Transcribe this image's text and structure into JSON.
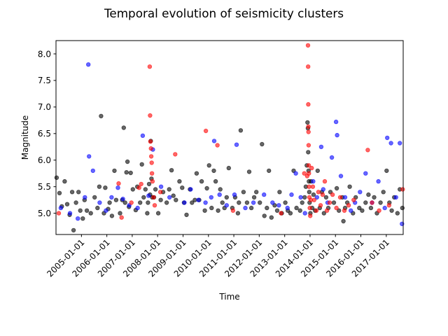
{
  "chart_data": {
    "type": "scatter",
    "title": "Temporal evolution of seismicity clusters",
    "xlabel": "Time",
    "ylabel": "Magnitude",
    "xlim": [
      "2004-01-01",
      "2017-09-01"
    ],
    "ylim": [
      4.6,
      8.25
    ],
    "grid": false,
    "x_ticks": [
      "2005-01-01",
      "2006-01-01",
      "2007-01-01",
      "2008-01-01",
      "2009-01-01",
      "2010-01-01",
      "2011-01-01",
      "2012-01-01",
      "2013-01-01",
      "2014-01-01",
      "2015-01-01",
      "2016-01-01",
      "2017-01-01"
    ],
    "y_ticks": [
      "5.0",
      "5.5",
      "6.0",
      "6.5",
      "7.0",
      "7.5",
      "8.0"
    ],
    "marker_alpha": 0.6,
    "series": [
      {
        "name": "black",
        "color": "#000000",
        "points": [
          [
            "2004-01-10",
            5.67
          ],
          [
            "2004-02-20",
            5.38
          ],
          [
            "2004-03-25",
            5.13
          ],
          [
            "2004-05-05",
            5.6
          ],
          [
            "2004-06-10",
            5.17
          ],
          [
            "2004-07-15",
            4.97
          ],
          [
            "2004-08-20",
            5.4
          ],
          [
            "2004-09-10",
            4.68
          ],
          [
            "2004-10-15",
            5.2
          ],
          [
            "2004-11-20",
            5.4
          ],
          [
            "2004-12-15",
            5.05
          ],
          [
            "2005-01-20",
            4.9
          ],
          [
            "2005-02-15",
            5.25
          ],
          [
            "2005-03-20",
            5.05
          ],
          [
            "2005-05-15",
            5.0
          ],
          [
            "2005-07-10",
            5.3
          ],
          [
            "2005-08-20",
            5.1
          ],
          [
            "2005-09-15",
            5.5
          ],
          [
            "2005-10-10",
            6.83
          ],
          [
            "2005-11-20",
            5.0
          ],
          [
            "2005-12-10",
            5.48
          ],
          [
            "2006-01-20",
            5.08
          ],
          [
            "2006-02-10",
            5.2
          ],
          [
            "2006-03-15",
            4.95
          ],
          [
            "2006-04-20",
            5.8
          ],
          [
            "2006-05-15",
            5.25
          ],
          [
            "2006-07-10",
            5.0
          ],
          [
            "2006-08-10",
            5.25
          ],
          [
            "2006-09-01",
            6.61
          ],
          [
            "2006-09-20",
            5.2
          ],
          [
            "2006-10-10",
            5.77
          ],
          [
            "2006-10-25",
            5.97
          ],
          [
            "2006-11-15",
            5.12
          ],
          [
            "2006-12-10",
            5.76
          ],
          [
            "2007-01-10",
            5.45
          ],
          [
            "2007-02-20",
            5.06
          ],
          [
            "2007-03-15",
            5.5
          ],
          [
            "2007-04-25",
            5.2
          ],
          [
            "2007-05-20",
            5.92
          ],
          [
            "2007-06-15",
            5.3
          ],
          [
            "2007-07-10",
            5.45
          ],
          [
            "2007-08-05",
            5.0
          ],
          [
            "2007-08-15",
            5.2
          ],
          [
            "2007-09-01",
            5.55
          ],
          [
            "2007-09-15",
            5.35
          ],
          [
            "2007-09-25",
            6.36
          ],
          [
            "2007-10-05",
            5.65
          ],
          [
            "2007-10-15",
            5.3
          ],
          [
            "2007-11-10",
            5.3
          ],
          [
            "2007-12-01",
            5.45
          ],
          [
            "2008-01-10",
            5.0
          ],
          [
            "2008-02-15",
            5.25
          ],
          [
            "2008-03-20",
            5.4
          ],
          [
            "2008-05-10",
            5.2
          ],
          [
            "2008-06-15",
            5.45
          ],
          [
            "2008-07-20",
            5.81
          ],
          [
            "2008-08-15",
            5.33
          ],
          [
            "2008-09-20",
            5.25
          ],
          [
            "2008-11-10",
            5.6
          ],
          [
            "2008-12-20",
            5.48
          ],
          [
            "2009-01-15",
            5.2
          ],
          [
            "2009-02-20",
            4.97
          ],
          [
            "2009-04-10",
            5.45
          ],
          [
            "2009-05-10",
            5.2
          ],
          [
            "2009-06-20",
            5.25
          ],
          [
            "2009-07-15",
            5.75
          ],
          [
            "2009-08-20",
            5.25
          ],
          [
            "2009-09-25",
            5.6
          ],
          [
            "2009-11-10",
            5.05
          ],
          [
            "2009-12-10",
            5.47
          ],
          [
            "2010-01-10",
            5.9
          ],
          [
            "2010-02-15",
            5.1
          ],
          [
            "2010-03-20",
            5.8
          ],
          [
            "2010-04-15",
            5.6
          ],
          [
            "2010-05-20",
            5.05
          ],
          [
            "2010-06-20",
            5.45
          ],
          [
            "2010-07-20",
            5.2
          ],
          [
            "2010-08-20",
            5.1
          ],
          [
            "2010-09-20",
            5.3
          ],
          [
            "2010-10-20",
            5.85
          ],
          [
            "2010-12-10",
            5.1
          ],
          [
            "2011-01-20",
            5.3
          ],
          [
            "2011-03-01",
            5.0
          ],
          [
            "2011-03-15",
            5.2
          ],
          [
            "2011-04-10",
            6.56
          ],
          [
            "2011-05-20",
            5.4
          ],
          [
            "2011-07-10",
            5.2
          ],
          [
            "2011-08-10",
            5.78
          ],
          [
            "2011-09-10",
            5.1
          ],
          [
            "2011-10-20",
            5.3
          ],
          [
            "2011-11-20",
            5.4
          ],
          [
            "2012-01-10",
            5.2
          ],
          [
            "2012-02-10",
            6.3
          ],
          [
            "2012-03-15",
            4.95
          ],
          [
            "2012-04-20",
            5.1
          ],
          [
            "2012-05-20",
            5.8
          ],
          [
            "2012-06-25",
            4.92
          ],
          [
            "2012-08-10",
            5.15
          ],
          [
            "2012-09-15",
            5.05
          ],
          [
            "2012-10-20",
            5.4
          ],
          [
            "2012-11-20",
            5.0
          ],
          [
            "2013-01-10",
            5.2
          ],
          [
            "2013-02-15",
            5.05
          ],
          [
            "2013-03-25",
            5.0
          ],
          [
            "2013-05-10",
            5.8
          ],
          [
            "2013-06-20",
            5.1
          ],
          [
            "2013-08-10",
            5.05
          ],
          [
            "2013-09-10",
            5.2
          ],
          [
            "2013-10-15",
            5.3
          ],
          [
            "2013-11-01",
            5.5
          ],
          [
            "2013-11-15",
            5.9
          ],
          [
            "2013-11-25",
            6.71
          ],
          [
            "2013-12-01",
            6.6
          ],
          [
            "2013-12-05",
            6.15
          ],
          [
            "2013-12-10",
            5.8
          ],
          [
            "2013-12-15",
            5.6
          ],
          [
            "2013-12-20",
            5.4
          ],
          [
            "2013-12-25",
            5.2
          ],
          [
            "2014-01-05",
            5.0
          ],
          [
            "2014-01-15",
            5.6
          ],
          [
            "2014-02-01",
            5.1
          ],
          [
            "2014-02-20",
            5.35
          ],
          [
            "2014-03-15",
            5.05
          ],
          [
            "2014-04-20",
            5.8
          ],
          [
            "2014-05-20",
            5.1
          ],
          [
            "2014-06-20",
            5.4
          ],
          [
            "2014-07-20",
            5.0
          ],
          [
            "2014-08-20",
            5.3
          ],
          [
            "2014-09-20",
            5.1
          ],
          [
            "2014-10-20",
            5.4
          ],
          [
            "2014-12-10",
            5.2
          ],
          [
            "2015-01-20",
            5.47
          ],
          [
            "2015-02-20",
            5.05
          ],
          [
            "2015-04-10",
            5.3
          ],
          [
            "2015-04-25",
            4.85
          ],
          [
            "2015-05-20",
            5.1
          ],
          [
            "2015-06-20",
            5.2
          ],
          [
            "2015-07-25",
            5.5
          ],
          [
            "2015-09-10",
            5.0
          ],
          [
            "2015-10-20",
            5.3
          ],
          [
            "2015-12-10",
            5.1
          ],
          [
            "2016-01-20",
            5.05
          ],
          [
            "2016-03-10",
            5.2
          ],
          [
            "2016-04-20",
            5.35
          ],
          [
            "2016-05-25",
            5.1
          ],
          [
            "2016-07-10",
            5.3
          ],
          [
            "2016-08-20",
            5.0
          ],
          [
            "2016-10-10",
            5.2
          ],
          [
            "2016-11-20",
            5.4
          ],
          [
            "2017-01-05",
            5.8
          ],
          [
            "2017-02-15",
            5.2
          ],
          [
            "2017-03-20",
            5.05
          ],
          [
            "2017-04-25",
            5.3
          ],
          [
            "2017-06-10",
            5.0
          ],
          [
            "2017-07-15",
            5.45
          ],
          [
            "2017-08-20",
            5.1
          ]
        ]
      },
      {
        "name": "blue",
        "color": "#0000ff",
        "points": [
          [
            "2004-03-10",
            5.1
          ],
          [
            "2004-07-20",
            5.0
          ],
          [
            "2004-11-10",
            4.9
          ],
          [
            "2005-02-20",
            5.3
          ],
          [
            "2005-04-10",
            7.8
          ],
          [
            "2005-04-20",
            6.07
          ],
          [
            "2005-06-15",
            5.8
          ],
          [
            "2005-09-20",
            5.2
          ],
          [
            "2005-12-20",
            5.05
          ],
          [
            "2006-03-10",
            5.3
          ],
          [
            "2006-06-10",
            5.48
          ],
          [
            "2006-08-20",
            5.27
          ],
          [
            "2006-11-20",
            5.15
          ],
          [
            "2007-03-20",
            5.1
          ],
          [
            "2007-06-01",
            6.46
          ],
          [
            "2007-08-25",
            5.33
          ],
          [
            "2007-10-25",
            6.2
          ],
          [
            "2008-02-20",
            5.5
          ],
          [
            "2008-06-20",
            5.3
          ],
          [
            "2009-01-20",
            5.2
          ],
          [
            "2009-04-20",
            5.45
          ],
          [
            "2009-08-10",
            5.25
          ],
          [
            "2009-11-20",
            5.2
          ],
          [
            "2010-02-10",
            5.3
          ],
          [
            "2010-03-25",
            6.36
          ],
          [
            "2010-06-10",
            5.35
          ],
          [
            "2010-09-20",
            5.15
          ],
          [
            "2011-01-10",
            5.35
          ],
          [
            "2011-02-10",
            6.29
          ],
          [
            "2011-06-15",
            5.1
          ],
          [
            "2011-10-10",
            5.2
          ],
          [
            "2012-03-10",
            5.35
          ],
          [
            "2012-07-10",
            5.2
          ],
          [
            "2012-10-10",
            5.15
          ],
          [
            "2013-02-10",
            5.1
          ],
          [
            "2013-04-10",
            5.35
          ],
          [
            "2013-06-10",
            5.75
          ],
          [
            "2013-08-20",
            5.3
          ],
          [
            "2013-10-20",
            5.0
          ],
          [
            "2014-02-15",
            5.6
          ],
          [
            "2014-04-10",
            5.3
          ],
          [
            "2014-06-10",
            6.25
          ],
          [
            "2014-07-10",
            5.45
          ],
          [
            "2014-09-10",
            5.2
          ],
          [
            "2014-11-10",
            6.05
          ],
          [
            "2015-01-10",
            6.72
          ],
          [
            "2015-01-25",
            6.47
          ],
          [
            "2015-03-20",
            5.7
          ],
          [
            "2015-05-20",
            5.3
          ],
          [
            "2015-08-10",
            5.05
          ],
          [
            "2015-10-10",
            5.2
          ],
          [
            "2015-12-20",
            5.4
          ],
          [
            "2016-03-10",
            5.75
          ],
          [
            "2016-06-10",
            5.2
          ],
          [
            "2016-09-10",
            5.6
          ],
          [
            "2016-12-10",
            5.1
          ],
          [
            "2017-01-15",
            6.42
          ],
          [
            "2017-03-10",
            6.32
          ],
          [
            "2017-05-20",
            5.3
          ],
          [
            "2017-07-15",
            6.32
          ],
          [
            "2017-08-15",
            4.8
          ]
        ]
      },
      {
        "name": "red",
        "color": "#ff0000",
        "points": [
          [
            "2004-02-10",
            5.0
          ],
          [
            "2006-06-20",
            5.56
          ],
          [
            "2006-08-01",
            4.92
          ],
          [
            "2006-12-20",
            5.2
          ],
          [
            "2007-04-10",
            5.48
          ],
          [
            "2007-05-10",
            5.55
          ],
          [
            "2007-09-10",
            7.76
          ],
          [
            "2007-09-15",
            6.84
          ],
          [
            "2007-09-20",
            6.35
          ],
          [
            "2007-09-28",
            6.22
          ],
          [
            "2007-10-02",
            6.07
          ],
          [
            "2007-10-08",
            5.95
          ],
          [
            "2007-10-12",
            5.75
          ],
          [
            "2007-10-20",
            5.6
          ],
          [
            "2007-11-05",
            5.3
          ],
          [
            "2007-11-20",
            5.15
          ],
          [
            "2008-02-10",
            5.4
          ],
          [
            "2008-09-10",
            6.11
          ],
          [
            "2009-11-25",
            6.55
          ],
          [
            "2010-05-10",
            6.28
          ],
          [
            "2010-12-20",
            5.05
          ],
          [
            "2012-11-10",
            5.0
          ],
          [
            "2013-10-10",
            5.75
          ],
          [
            "2013-11-20",
            5.7
          ],
          [
            "2013-12-02",
            8.16
          ],
          [
            "2013-12-04",
            7.76
          ],
          [
            "2013-12-06",
            7.05
          ],
          [
            "2013-12-08",
            6.63
          ],
          [
            "2013-12-09",
            6.53
          ],
          [
            "2013-12-11",
            6.28
          ],
          [
            "2013-12-13",
            5.9
          ],
          [
            "2013-12-15",
            5.75
          ],
          [
            "2013-12-18",
            5.5
          ],
          [
            "2013-12-22",
            5.3
          ],
          [
            "2013-12-28",
            5.1
          ],
          [
            "2014-01-03",
            4.95
          ],
          [
            "2014-01-10",
            5.25
          ],
          [
            "2014-01-25",
            5.85
          ],
          [
            "2014-02-10",
            5.5
          ],
          [
            "2014-03-01",
            5.25
          ],
          [
            "2014-04-01",
            5.05
          ],
          [
            "2014-05-01",
            5.4
          ],
          [
            "2014-06-01",
            5.15
          ],
          [
            "2014-07-01",
            5.35
          ],
          [
            "2014-08-01",
            5.6
          ],
          [
            "2014-09-01",
            5.05
          ],
          [
            "2014-10-10",
            5.2
          ],
          [
            "2014-11-20",
            5.35
          ],
          [
            "2015-01-15",
            5.1
          ],
          [
            "2015-03-10",
            5.3
          ],
          [
            "2015-05-10",
            5.05
          ],
          [
            "2015-07-10",
            5.15
          ],
          [
            "2015-09-20",
            5.25
          ],
          [
            "2016-04-10",
            6.19
          ],
          [
            "2016-06-10",
            5.2
          ],
          [
            "2016-09-20",
            5.05
          ],
          [
            "2017-02-10",
            5.15
          ],
          [
            "2017-08-25",
            5.45
          ]
        ]
      }
    ]
  }
}
